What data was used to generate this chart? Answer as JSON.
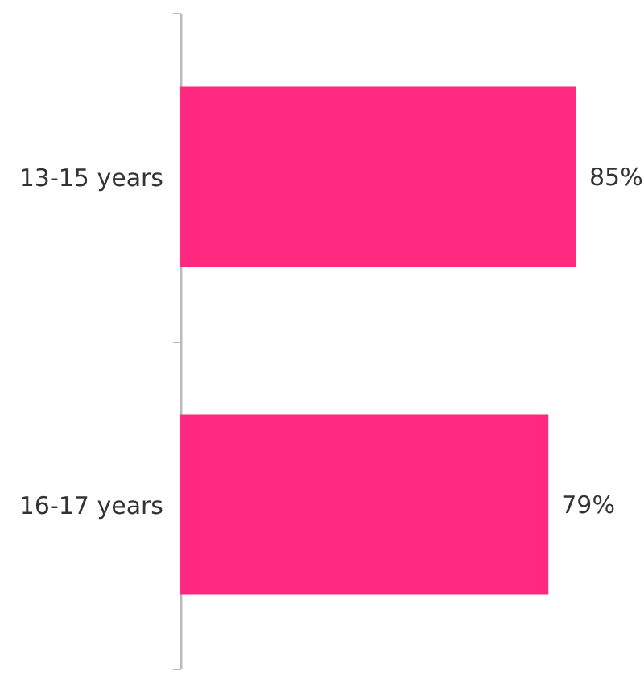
{
  "chart_data": {
    "type": "bar",
    "orientation": "horizontal",
    "categories": [
      "13-15 years",
      "16-17 years"
    ],
    "values": [
      85,
      79
    ],
    "color": "#ff2a7f",
    "value_labels": [
      "85%",
      "79%"
    ]
  }
}
